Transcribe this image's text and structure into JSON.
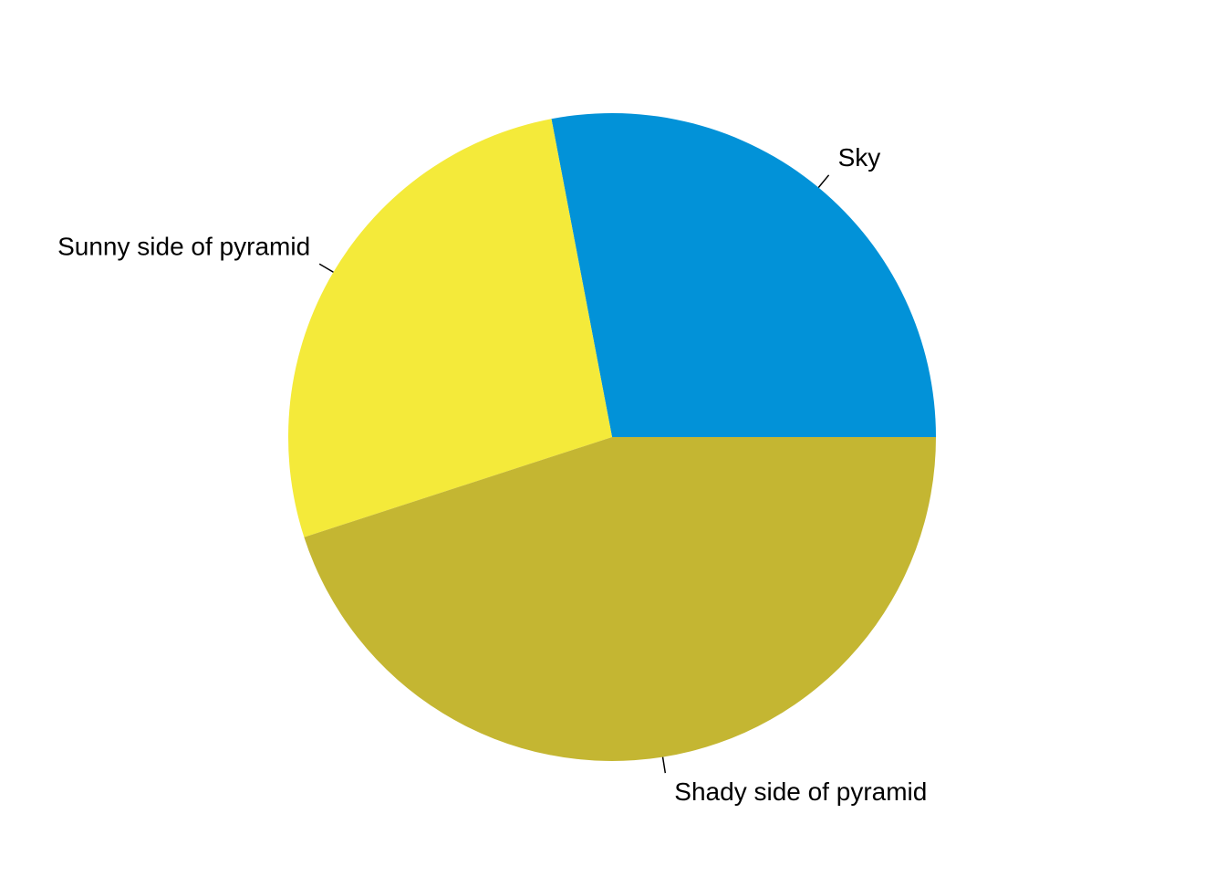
{
  "chart_data": {
    "type": "pie",
    "title": "",
    "start_angle_deg": 0,
    "direction": "counterclockwise",
    "slices": [
      {
        "label": "Sky",
        "value": 0.28,
        "color": "#0292D8"
      },
      {
        "label": "Sunny side of pyramid",
        "value": 0.27,
        "color": "#F4EA3A"
      },
      {
        "label": "Shady side of pyramid",
        "value": 0.45,
        "color": "#C4B632"
      }
    ],
    "legend": "none"
  }
}
